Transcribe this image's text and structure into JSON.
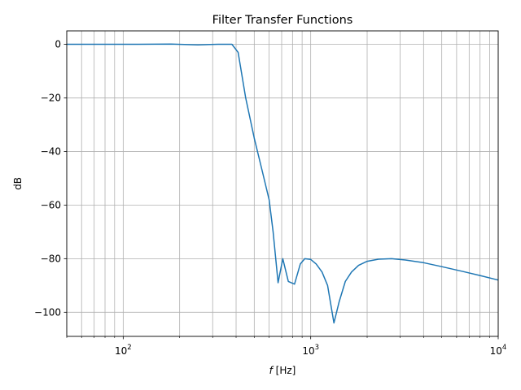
{
  "chart_data": {
    "type": "line",
    "title": "Filter Transfer Functions",
    "xlabel_italic": "f",
    "xlabel_rest": " [Hz]",
    "ylabel": "dB",
    "xscale": "log",
    "xlim": [
      50,
      10000
    ],
    "ylim": [
      -109,
      5
    ],
    "grid": "on (major and minor x, major y)",
    "x_ticks": [
      {
        "value": 100,
        "base": "10",
        "exp": "2"
      },
      {
        "value": 1000,
        "base": "10",
        "exp": "3"
      },
      {
        "value": 10000,
        "base": "10",
        "exp": "4"
      }
    ],
    "y_ticks": [
      {
        "value": 0,
        "label": "0"
      },
      {
        "value": -20,
        "label": "−20"
      },
      {
        "value": -40,
        "label": "−40"
      },
      {
        "value": -60,
        "label": "−60"
      },
      {
        "value": -80,
        "label": "−80"
      },
      {
        "value": -100,
        "label": "−100"
      }
    ],
    "series": [
      {
        "color": "#1f77b4",
        "x": [
          50,
          80,
          120,
          180,
          250,
          320,
          380,
          410,
          450,
          500,
          550,
          600,
          630,
          670,
          710,
          760,
          820,
          880,
          930,
          1000,
          1070,
          1150,
          1230,
          1330,
          1420,
          1530,
          1650,
          1800,
          2000,
          2300,
          2700,
          3200,
          4000,
          5000,
          6500,
          8000,
          10000
        ],
        "y": [
          0,
          0,
          0,
          0.1,
          -0.2,
          0,
          0,
          -3,
          -20,
          -35,
          -47,
          -58,
          -70,
          -89,
          -80,
          -88.5,
          -89.5,
          -82,
          -80,
          -80.3,
          -82,
          -85,
          -90,
          -104,
          -96,
          -88.5,
          -85,
          -82.5,
          -81,
          -80.2,
          -80,
          -80.5,
          -81.5,
          -83,
          -84.8,
          -86.3,
          -88
        ]
      }
    ]
  }
}
